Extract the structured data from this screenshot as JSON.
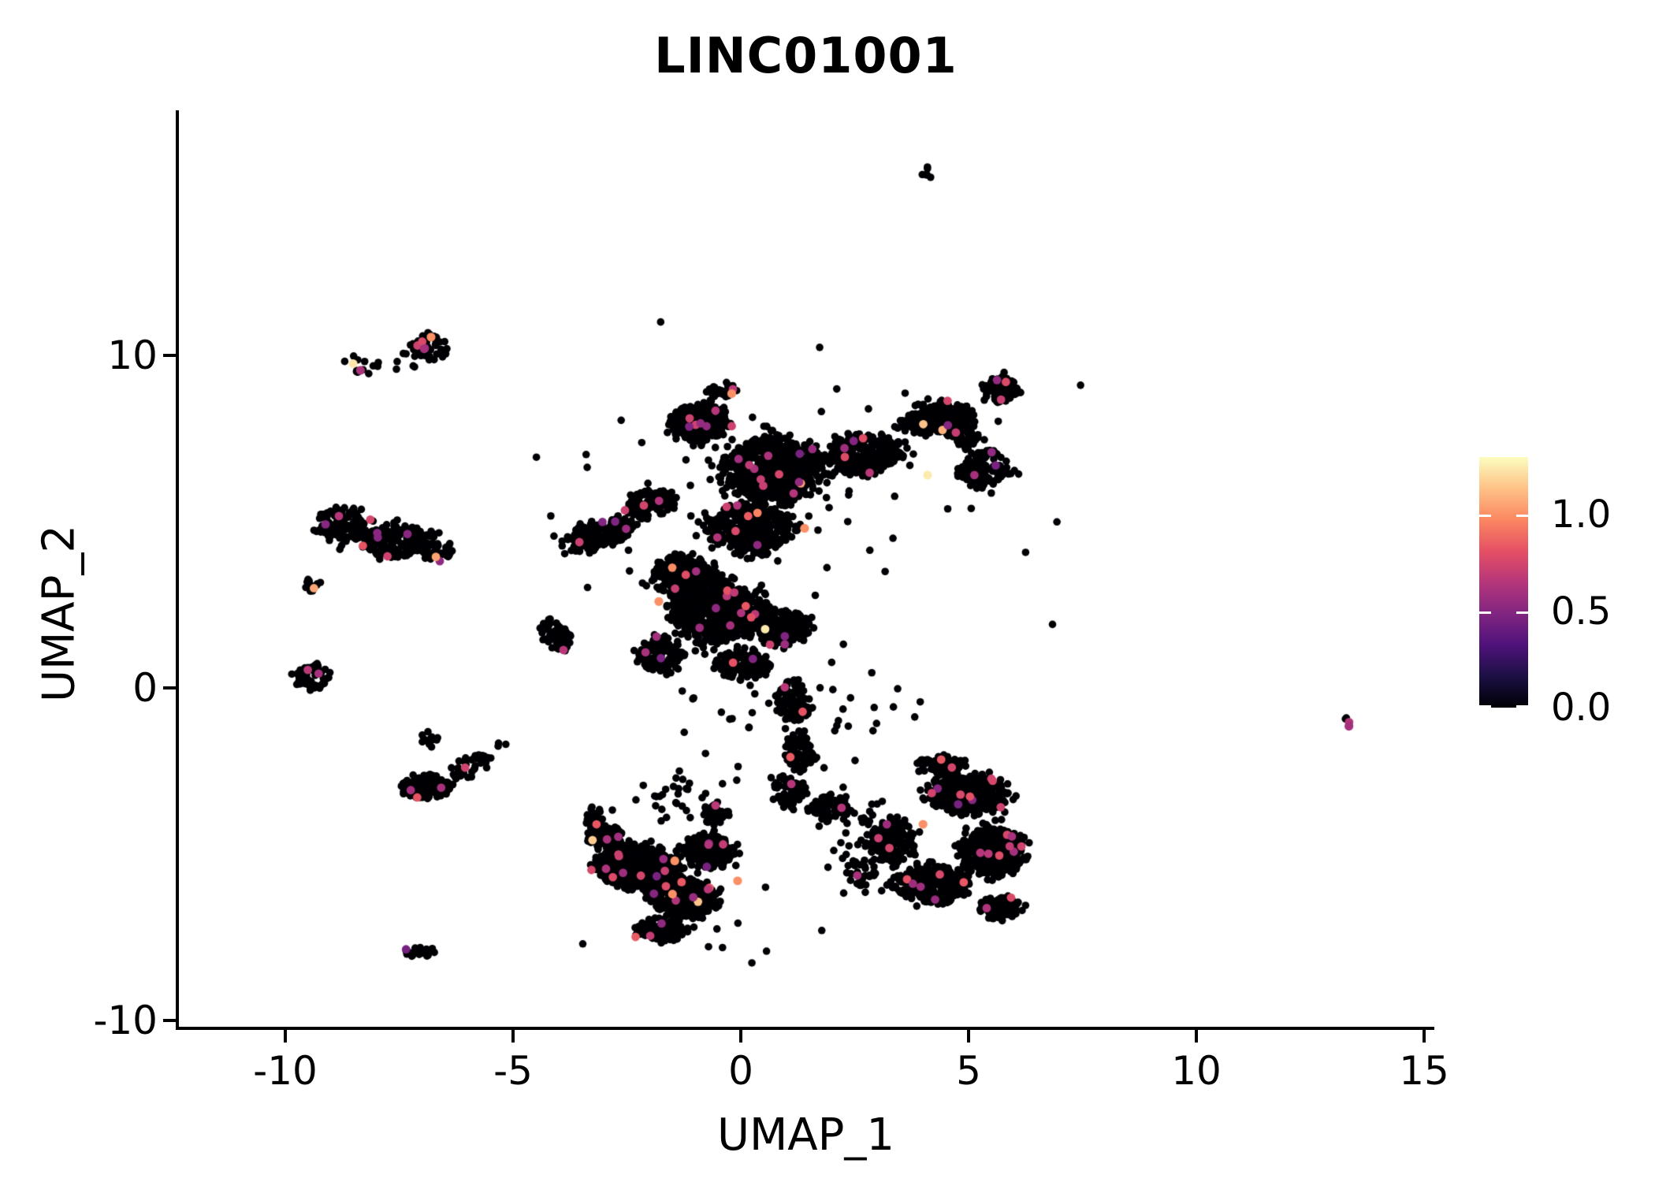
{
  "chart": {
    "title": "LINC01001"
  },
  "axes": {
    "x_label": "UMAP_1",
    "y_label": "UMAP_2",
    "x_ticks": [
      {
        "v": -10,
        "label": "-10"
      },
      {
        "v": -5,
        "label": "-5"
      },
      {
        "v": 0,
        "label": "0"
      },
      {
        "v": 5,
        "label": "5"
      },
      {
        "v": 10,
        "label": "10"
      },
      {
        "v": 15,
        "label": "15"
      }
    ],
    "y_ticks": [
      {
        "v": -10,
        "label": "-10"
      },
      {
        "v": 0,
        "label": "0"
      },
      {
        "v": 10,
        "label": "10"
      }
    ]
  },
  "colorbar": {
    "vmin": 0.0,
    "vmax": 1.3,
    "colormap": "magma",
    "ticks": [
      {
        "v": 1.0,
        "label": "1.0"
      },
      {
        "v": 0.5,
        "label": "0.5"
      },
      {
        "v": 0.0,
        "label": "0.0"
      }
    ]
  },
  "colors": {
    "background": "#ffffff",
    "axis": "#000000",
    "point_base": "#000004",
    "magma_stops": [
      [
        0.0,
        0,
        0,
        4
      ],
      [
        0.125,
        28,
        16,
        68
      ],
      [
        0.25,
        79,
        18,
        123
      ],
      [
        0.375,
        129,
        37,
        129
      ],
      [
        0.5,
        181,
        54,
        122
      ],
      [
        0.625,
        229,
        80,
        100
      ],
      [
        0.75,
        251,
        135,
        97
      ],
      [
        0.875,
        254,
        194,
        135
      ],
      [
        1.0,
        252,
        253,
        191
      ]
    ]
  },
  "chart_data": {
    "type": "scatter",
    "title": "LINC01001",
    "xlabel": "UMAP_1",
    "ylabel": "UMAP_2",
    "x_axis_ticks": [
      -10,
      -5,
      0,
      5,
      10,
      15
    ],
    "y_axis_ticks": [
      -10,
      0,
      10
    ],
    "x_range_shown": [
      -12.3,
      15.2
    ],
    "y_range_shown": [
      -10.2,
      17.4
    ],
    "color_encodes": "gene expression level, magma colormap, scale 0.0 to ~1.3",
    "approx_total_points": 7800,
    "point_radius_px": 4.8,
    "seed": 1234,
    "colored_fraction": 0.02,
    "clusters": [
      {
        "x": 4.07,
        "y": 15.5,
        "sx": 0.12,
        "sy": 0.2,
        "n": 6,
        "d": "u",
        "c": 0
      },
      {
        "x": -6.85,
        "y": 10.2,
        "sx": 0.38,
        "sy": 0.42,
        "n": 60,
        "d": "u",
        "c": 3
      },
      {
        "x": -7.7,
        "y": 9.75,
        "sx": 0.5,
        "sy": 0.15,
        "n": 14,
        "d": "g",
        "c": 1
      },
      {
        "x": -8.4,
        "y": 9.55,
        "sx": 0.12,
        "sy": 0.1,
        "n": 5,
        "d": "u",
        "c": 0
      },
      {
        "x": -8.75,
        "y": 4.9,
        "sx": 0.6,
        "sy": 0.5,
        "n": 130,
        "d": "u",
        "c": 3
      },
      {
        "x": -7.55,
        "y": 4.4,
        "sx": 0.75,
        "sy": 0.5,
        "n": 170,
        "d": "u",
        "c": 5
      },
      {
        "x": -6.7,
        "y": 4.15,
        "sx": 0.4,
        "sy": 0.3,
        "n": 50,
        "d": "u",
        "c": 2
      },
      {
        "x": -9.4,
        "y": 3.05,
        "sx": 0.2,
        "sy": 0.25,
        "n": 12,
        "d": "u",
        "c": 1
      },
      {
        "x": -9.4,
        "y": 0.35,
        "sx": 0.4,
        "sy": 0.38,
        "n": 60,
        "d": "u",
        "c": 2
      },
      {
        "x": -6.9,
        "y": -3.0,
        "sx": 0.55,
        "sy": 0.38,
        "n": 110,
        "d": "u",
        "c": 3
      },
      {
        "x": -5.95,
        "y": -2.35,
        "sx": 0.45,
        "sy": 0.3,
        "n": 40,
        "d": "u",
        "rot": 0.5,
        "c": 1
      },
      {
        "x": -6.85,
        "y": -1.55,
        "sx": 0.2,
        "sy": 0.2,
        "n": 12,
        "d": "u",
        "c": 0
      },
      {
        "x": -5.25,
        "y": -1.7,
        "sx": 0.1,
        "sy": 0.08,
        "n": 3,
        "d": "u",
        "c": 0
      },
      {
        "x": -7.1,
        "y": -7.95,
        "sx": 0.35,
        "sy": 0.18,
        "n": 24,
        "d": "u",
        "c": 1
      },
      {
        "x": -4.1,
        "y": 1.6,
        "sx": 0.3,
        "sy": 0.5,
        "n": 55,
        "d": "u",
        "rot": 0.4,
        "c": 1
      },
      {
        "x": -3.1,
        "y": 4.6,
        "sx": 0.8,
        "sy": 0.4,
        "n": 170,
        "d": "u",
        "rot": 0.45,
        "c": 4
      },
      {
        "x": -2.0,
        "y": 5.5,
        "sx": 0.55,
        "sy": 0.4,
        "n": 130,
        "d": "u",
        "rot": 0.45,
        "c": 3
      },
      {
        "x": -0.9,
        "y": 8.0,
        "sx": 0.62,
        "sy": 0.55,
        "n": 310,
        "d": "u",
        "c": 7
      },
      {
        "x": -0.4,
        "y": 8.95,
        "sx": 0.35,
        "sy": 0.22,
        "n": 40,
        "d": "u",
        "c": 1
      },
      {
        "x": 0.7,
        "y": 6.6,
        "sx": 1.1,
        "sy": 0.95,
        "n": 620,
        "d": "u",
        "c": 12
      },
      {
        "x": 2.7,
        "y": 7.0,
        "sx": 0.85,
        "sy": 0.6,
        "n": 260,
        "d": "u",
        "rot": 0.3,
        "c": 5
      },
      {
        "x": 4.3,
        "y": 8.1,
        "sx": 0.8,
        "sy": 0.5,
        "n": 200,
        "d": "u",
        "rot": 0.25,
        "c": 4
      },
      {
        "x": 5.7,
        "y": 9.0,
        "sx": 0.38,
        "sy": 0.38,
        "n": 90,
        "d": "u",
        "c": 3
      },
      {
        "x": 5.3,
        "y": 6.6,
        "sx": 0.55,
        "sy": 0.6,
        "n": 140,
        "d": "u",
        "c": 3
      },
      {
        "x": 4.95,
        "y": 7.6,
        "sx": 0.35,
        "sy": 0.4,
        "n": 50,
        "d": "u",
        "c": 1
      },
      {
        "x": 0.2,
        "y": 4.8,
        "sx": 1.0,
        "sy": 0.7,
        "n": 330,
        "d": "u",
        "c": 7
      },
      {
        "x": -1.3,
        "y": 3.4,
        "sx": 0.7,
        "sy": 0.55,
        "n": 200,
        "d": "u",
        "rot": 0.5,
        "c": 4
      },
      {
        "x": -0.5,
        "y": 2.3,
        "sx": 1.0,
        "sy": 0.95,
        "n": 550,
        "d": "u",
        "c": 10
      },
      {
        "x": 0.9,
        "y": 1.8,
        "sx": 0.6,
        "sy": 0.55,
        "n": 200,
        "d": "u",
        "c": 4
      },
      {
        "x": -1.75,
        "y": 1.0,
        "sx": 0.45,
        "sy": 0.55,
        "n": 140,
        "d": "u",
        "c": 3
      },
      {
        "x": 0.1,
        "y": 0.7,
        "sx": 0.55,
        "sy": 0.45,
        "n": 140,
        "d": "u",
        "c": 2
      },
      {
        "x": 1.15,
        "y": -0.4,
        "sx": 0.35,
        "sy": 0.65,
        "n": 100,
        "d": "u",
        "c": 2
      },
      {
        "x": 1.3,
        "y": -1.9,
        "sx": 0.3,
        "sy": 0.6,
        "n": 80,
        "d": "u",
        "c": 1
      },
      {
        "x": 1.05,
        "y": -3.1,
        "sx": 0.35,
        "sy": 0.5,
        "n": 70,
        "d": "u",
        "c": 1
      },
      {
        "x": -2.3,
        "y": -5.4,
        "sx": 0.85,
        "sy": 0.65,
        "n": 520,
        "d": "u",
        "c": 11
      },
      {
        "x": -1.2,
        "y": -6.3,
        "sx": 0.7,
        "sy": 0.55,
        "n": 330,
        "d": "u",
        "c": 7
      },
      {
        "x": -0.7,
        "y": -4.9,
        "sx": 0.55,
        "sy": 0.5,
        "n": 200,
        "d": "u",
        "c": 4
      },
      {
        "x": -2.95,
        "y": -4.5,
        "sx": 0.4,
        "sy": 0.35,
        "n": 100,
        "d": "u",
        "c": 3
      },
      {
        "x": -1.7,
        "y": -7.3,
        "sx": 0.5,
        "sy": 0.35,
        "n": 140,
        "d": "u",
        "c": 3
      },
      {
        "x": -3.2,
        "y": -3.9,
        "sx": 0.2,
        "sy": 0.3,
        "n": 30,
        "d": "u",
        "c": 1
      },
      {
        "x": -0.55,
        "y": -3.8,
        "sx": 0.3,
        "sy": 0.3,
        "n": 50,
        "d": "u",
        "c": 1
      },
      {
        "x": -1.4,
        "y": -3.2,
        "sx": 0.7,
        "sy": 0.4,
        "n": 30,
        "d": "g",
        "c": 0
      },
      {
        "x": 1.85,
        "y": -3.6,
        "sx": 0.45,
        "sy": 0.4,
        "n": 60,
        "d": "u",
        "c": 1
      },
      {
        "x": 2.5,
        "y": -4.4,
        "sx": 0.35,
        "sy": 0.5,
        "n": 40,
        "d": "g",
        "c": 0
      },
      {
        "x": 5.0,
        "y": -3.2,
        "sx": 0.85,
        "sy": 0.6,
        "n": 430,
        "d": "u",
        "c": 9
      },
      {
        "x": 5.5,
        "y": -4.9,
        "sx": 0.7,
        "sy": 0.8,
        "n": 380,
        "d": "u",
        "c": 8
      },
      {
        "x": 4.2,
        "y": -5.9,
        "sx": 0.8,
        "sy": 0.55,
        "n": 290,
        "d": "u",
        "c": 6
      },
      {
        "x": 3.35,
        "y": -4.6,
        "sx": 0.5,
        "sy": 0.6,
        "n": 150,
        "d": "u",
        "c": 3
      },
      {
        "x": 4.4,
        "y": -2.3,
        "sx": 0.55,
        "sy": 0.3,
        "n": 80,
        "d": "u",
        "c": 2
      },
      {
        "x": 5.7,
        "y": -6.6,
        "sx": 0.45,
        "sy": 0.35,
        "n": 80,
        "d": "u",
        "c": 2
      },
      {
        "x": 2.75,
        "y": -5.6,
        "sx": 0.3,
        "sy": 0.45,
        "n": 40,
        "d": "g",
        "c": 1
      },
      {
        "x": 13.3,
        "y": -1.0,
        "sx": 0.1,
        "sy": 0.12,
        "n": 2,
        "d": "u",
        "c": 1
      },
      {
        "x": 0.6,
        "y": 6.0,
        "sx": 2.6,
        "sy": 2.2,
        "n": 70,
        "d": "g",
        "c": 0
      },
      {
        "x": 0.0,
        "y": -1.0,
        "sx": 1.3,
        "sy": 1.3,
        "n": 25,
        "d": "g",
        "c": 0
      },
      {
        "x": 2.3,
        "y": -0.6,
        "sx": 0.9,
        "sy": 1.1,
        "n": 18,
        "d": "g",
        "c": 0
      },
      {
        "x": 0.3,
        "y": -7.6,
        "sx": 1.2,
        "sy": 0.5,
        "n": 12,
        "d": "g",
        "c": 0
      }
    ],
    "highlight_points": [
      {
        "x": -6.8,
        "y": 10.55,
        "v": 1.0
      },
      {
        "x": -6.95,
        "y": 10.2,
        "v": 0.6
      },
      {
        "x": -8.35,
        "y": 9.55,
        "v": 0.62
      },
      {
        "x": 13.35,
        "y": -1.15,
        "v": 0.6
      },
      {
        "x": -1.45,
        "y": -5.2,
        "v": 1.0
      },
      {
        "x": -0.07,
        "y": -5.8,
        "v": 1.0
      },
      {
        "x": 4.0,
        "y": -4.1,
        "v": 1.0
      },
      {
        "x": 4.1,
        "y": 6.4,
        "v": 1.25
      },
      {
        "x": -0.2,
        "y": 8.85,
        "v": 1.0
      },
      {
        "x": 1.4,
        "y": 4.8,
        "v": 1.0
      },
      {
        "x": -1.8,
        "y": 2.6,
        "v": 1.0
      },
      {
        "x": -1.5,
        "y": -6.2,
        "v": 1.0
      }
    ]
  }
}
